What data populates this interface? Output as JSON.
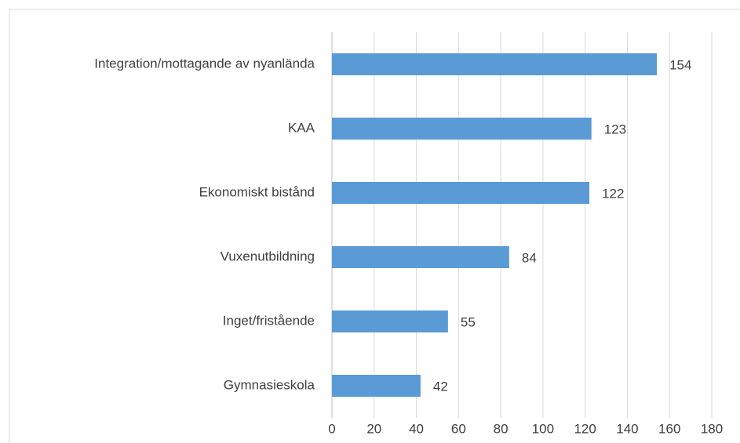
{
  "chart_data": {
    "type": "bar",
    "orientation": "horizontal",
    "categories": [
      "Integration/mottagande av nyanlända",
      "KAA",
      "Ekonomiskt bistånd",
      "Vuxenutbildning",
      "Inget/fristående",
      "Gymnasieskola"
    ],
    "values": [
      154,
      123,
      122,
      84,
      55,
      42
    ],
    "color": "#5b9bd5",
    "xlim": [
      0,
      180
    ],
    "xticks": [
      0,
      20,
      40,
      60,
      80,
      100,
      120,
      140,
      160,
      180
    ],
    "grid": true
  }
}
